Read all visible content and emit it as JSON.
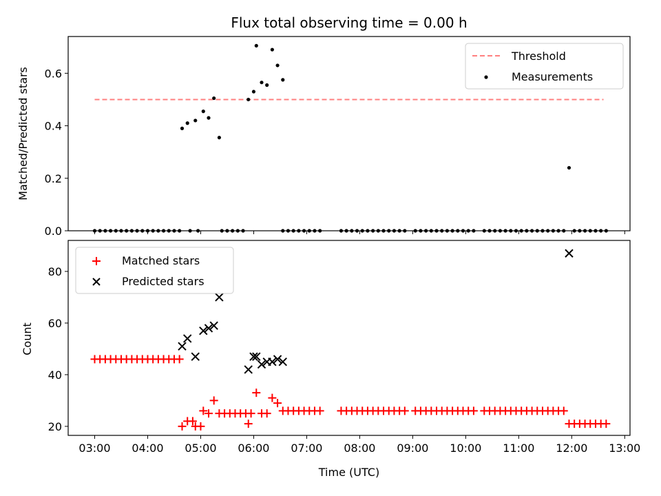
{
  "chart_data": [
    {
      "type": "scatter",
      "title": "Flux total observing time = 0.00 h",
      "xlabel": "",
      "ylabel": "Matched/Predicted stars",
      "ylim": [
        0,
        0.74
      ],
      "xlim": [
        "02:30",
        "13:06"
      ],
      "yticks": [
        "0.0",
        "0.2",
        "0.4",
        "0.6"
      ],
      "legend_position": "top-right",
      "threshold": {
        "name": "Threshold",
        "value": 0.5,
        "x_start": "03:00",
        "x_end": "12:36",
        "color": "#ff7f7f",
        "style": "dashed"
      },
      "series": [
        {
          "name": "Measurements",
          "marker": "dot",
          "color": "#000000",
          "points": [
            [
              "04:39",
              0.39
            ],
            [
              "04:45",
              0.41
            ],
            [
              "04:54",
              0.42
            ],
            [
              "05:03",
              0.455
            ],
            [
              "05:09",
              0.43
            ],
            [
              "05:15",
              0.505
            ],
            [
              "05:21",
              0.355
            ],
            [
              "05:54",
              0.5
            ],
            [
              "05:60",
              0.53
            ],
            [
              "06:03",
              0.705
            ],
            [
              "06:09",
              0.565
            ],
            [
              "06:15",
              0.555
            ],
            [
              "06:21",
              0.69
            ],
            [
              "06:27",
              0.63
            ],
            [
              "06:33",
              0.575
            ],
            [
              "11:57",
              0.24
            ]
          ],
          "zero_runs": [
            {
              "start": "03:00",
              "end": "04:36",
              "step_minutes": 6
            },
            {
              "start": "04:48",
              "end": "04:48",
              "step_minutes": 6
            },
            {
              "start": "04:57",
              "end": "04:57",
              "step_minutes": 6
            },
            {
              "start": "05:24",
              "end": "05:48",
              "step_minutes": 6
            },
            {
              "start": "06:33",
              "end": "07:15",
              "step_minutes": 6
            },
            {
              "start": "07:39",
              "end": "08:51",
              "step_minutes": 6
            },
            {
              "start": "09:03",
              "end": "10:09",
              "step_minutes": 6
            },
            {
              "start": "10:21",
              "end": "11:51",
              "step_minutes": 6
            },
            {
              "start": "12:03",
              "end": "12:39",
              "step_minutes": 6
            }
          ]
        }
      ]
    },
    {
      "type": "scatter",
      "title": "",
      "xlabel": "Time (UTC)",
      "ylabel": "Count",
      "ylim": [
        16.5,
        92
      ],
      "xlim": [
        "02:30",
        "13:06"
      ],
      "xticks": [
        "03:00",
        "04:00",
        "05:00",
        "06:00",
        "07:00",
        "08:00",
        "09:00",
        "10:00",
        "11:00",
        "12:00",
        "13:00"
      ],
      "yticks": [
        "20",
        "40",
        "60",
        "80"
      ],
      "legend_position": "top-left",
      "series": [
        {
          "name": "Matched stars",
          "marker": "plus",
          "color": "#ff0000",
          "runs": [
            {
              "start": "03:00",
              "end": "04:36",
              "step_minutes": 6,
              "value": 46
            },
            {
              "start": "06:33",
              "end": "07:15",
              "step_minutes": 6,
              "value": 26
            },
            {
              "start": "07:39",
              "end": "08:51",
              "step_minutes": 6,
              "value": 26
            },
            {
              "start": "09:03",
              "end": "10:09",
              "step_minutes": 6,
              "value": 26
            },
            {
              "start": "10:21",
              "end": "11:51",
              "step_minutes": 6,
              "value": 26
            },
            {
              "start": "11:57",
              "end": "12:39",
              "step_minutes": 6,
              "value": 21
            }
          ],
          "points": [
            [
              "04:39",
              20
            ],
            [
              "04:45",
              22
            ],
            [
              "04:51",
              22
            ],
            [
              "04:54",
              20
            ],
            [
              "04:60",
              20
            ],
            [
              "05:03",
              26
            ],
            [
              "05:09",
              25
            ],
            [
              "05:15",
              30
            ],
            [
              "05:21",
              25
            ],
            [
              "05:27",
              25
            ],
            [
              "05:33",
              25
            ],
            [
              "05:39",
              25
            ],
            [
              "05:45",
              25
            ],
            [
              "05:51",
              25
            ],
            [
              "05:54",
              21
            ],
            [
              "05:57",
              25
            ],
            [
              "06:03",
              33
            ],
            [
              "06:09",
              25
            ],
            [
              "06:15",
              25
            ],
            [
              "06:21",
              31
            ],
            [
              "06:27",
              29
            ]
          ]
        },
        {
          "name": "Predicted stars",
          "marker": "x",
          "color": "#000000",
          "points": [
            [
              "04:39",
              51
            ],
            [
              "04:45",
              54
            ],
            [
              "04:54",
              47
            ],
            [
              "05:03",
              57
            ],
            [
              "05:09",
              58
            ],
            [
              "05:15",
              59
            ],
            [
              "05:21",
              70
            ],
            [
              "05:54",
              42
            ],
            [
              "05:60",
              47
            ],
            [
              "06:03",
              47
            ],
            [
              "06:09",
              44
            ],
            [
              "06:15",
              45
            ],
            [
              "06:21",
              45
            ],
            [
              "06:27",
              46
            ],
            [
              "06:33",
              45
            ],
            [
              "11:57",
              87
            ]
          ]
        }
      ]
    }
  ]
}
